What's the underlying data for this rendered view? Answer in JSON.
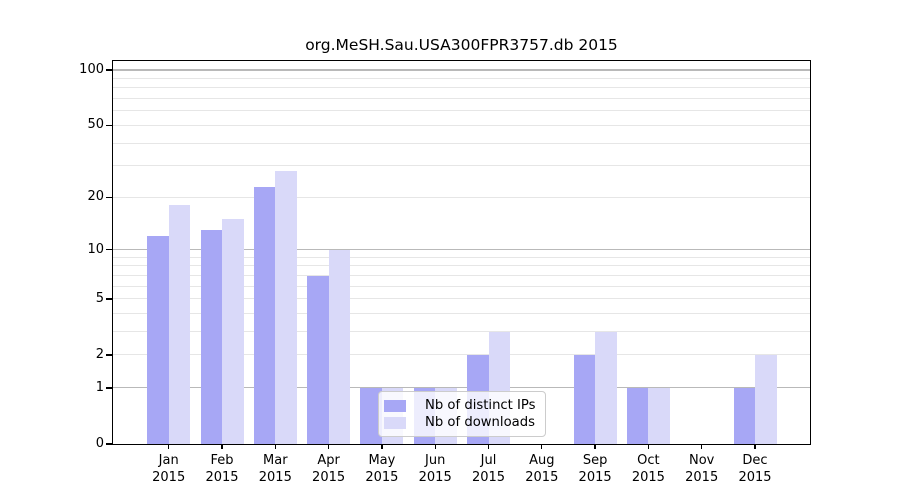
{
  "title": "org.MeSH.Sau.USA300FPR3757.db 2015",
  "year": "2015",
  "chart_data": {
    "type": "bar",
    "title": "org.MeSH.Sau.USA300FPR3757.db 2015",
    "categories": [
      "Jan",
      "Feb",
      "Mar",
      "Apr",
      "May",
      "Jun",
      "Jul",
      "Aug",
      "Sep",
      "Oct",
      "Nov",
      "Dec"
    ],
    "x_tick_second_line": "2015",
    "series": [
      {
        "name": "Nb of distinct IPs",
        "color": "#a7a7f5",
        "values": [
          12,
          13,
          23,
          7,
          1,
          1,
          2,
          0,
          2,
          1,
          0,
          1
        ]
      },
      {
        "name": "Nb of downloads",
        "color": "#d9d9f9",
        "values": [
          18,
          15,
          28,
          10,
          1,
          1,
          3,
          0,
          3,
          1,
          0,
          2
        ]
      }
    ],
    "xlabel": "",
    "ylabel": "",
    "y_scale": "log10(1+y)",
    "ylim": [
      0,
      112
    ],
    "y_max": 112,
    "y_ticks": [
      0,
      1,
      2,
      5,
      10,
      20,
      50,
      100
    ],
    "y_major_gridlines": [
      1,
      10,
      100
    ],
    "y_minor_gridlines": [
      3,
      4,
      6,
      7,
      8,
      9,
      30,
      40,
      60,
      70,
      80,
      90
    ],
    "grid": "horizontal",
    "legend_position": "lower-center"
  },
  "colors": {
    "bar_dark": "#a7a7f5",
    "bar_light": "#d9d9f9",
    "grid_major": "#b9b9b9",
    "grid_minor": "#e6e6e6",
    "spine": "#000000",
    "legend_border": "#cccccc"
  }
}
